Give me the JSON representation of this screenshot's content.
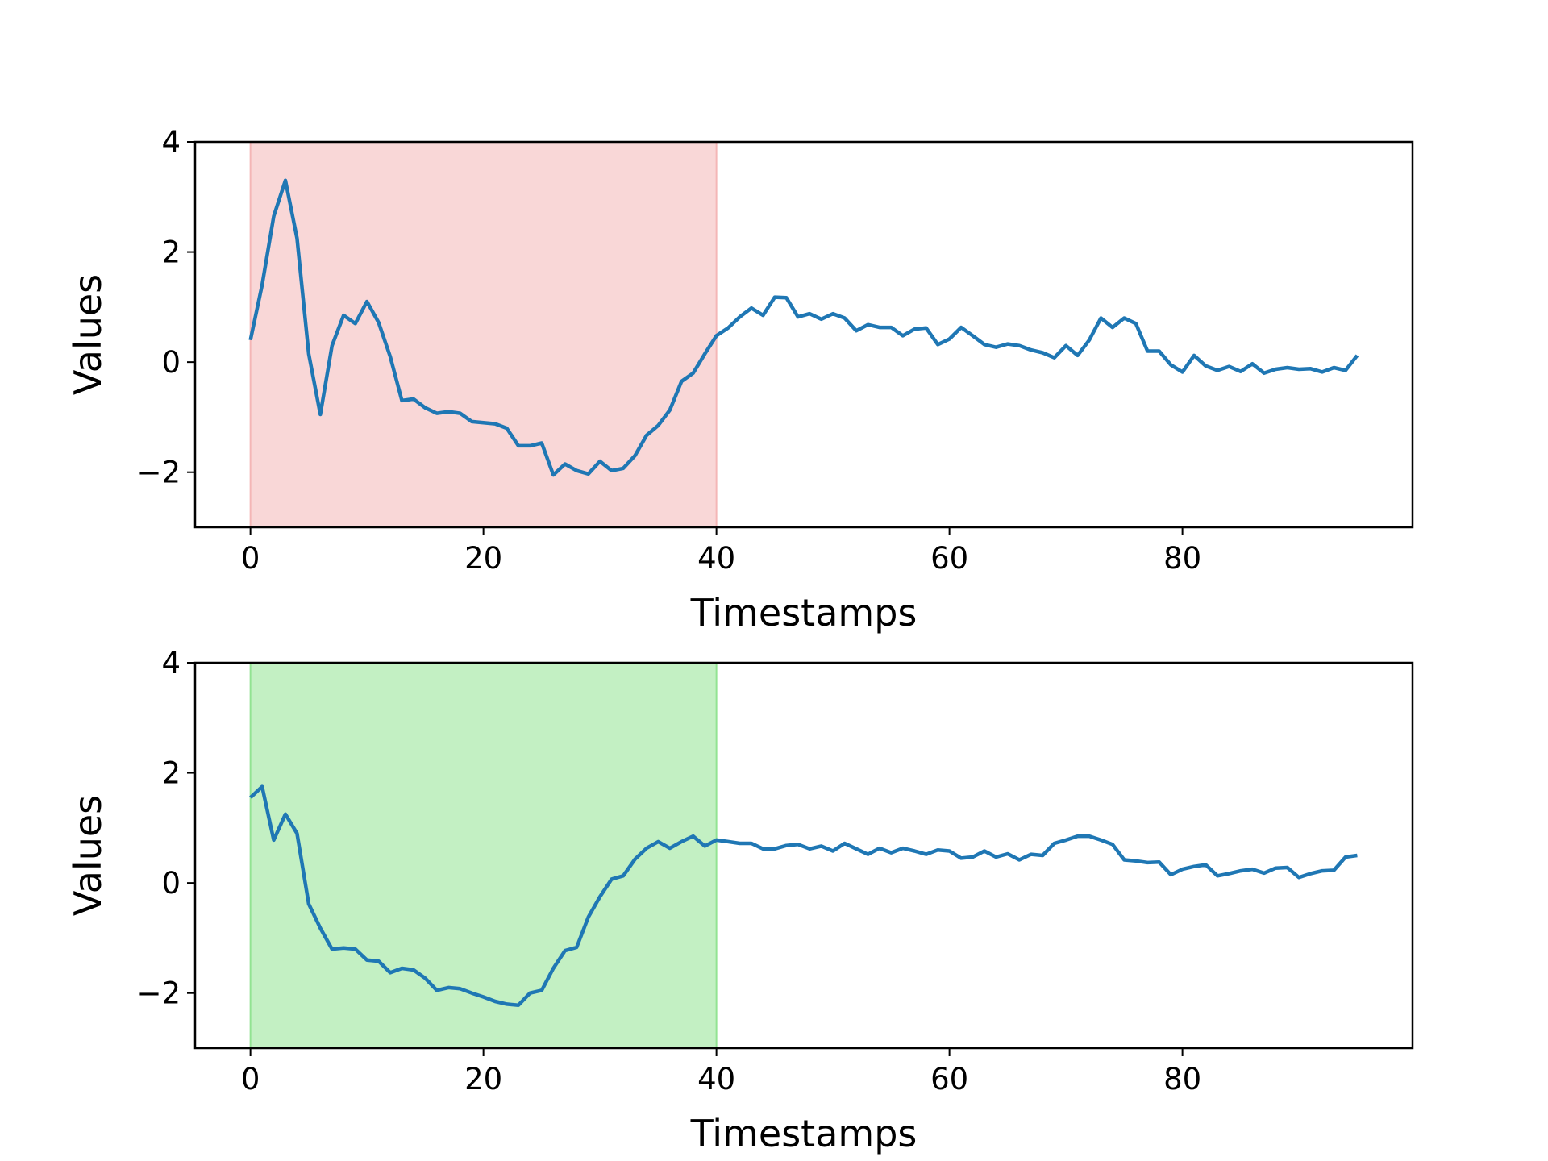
{
  "chart_data": [
    {
      "type": "line",
      "xlabel": "Timestamps",
      "ylabel": "Values",
      "xlim": [
        -4.75,
        99.75
      ],
      "ylim": [
        -3,
        4
      ],
      "xticks": [
        0,
        20,
        40,
        60,
        80
      ],
      "yticks": [
        -2,
        0,
        2,
        4
      ],
      "grid": false,
      "highlight": {
        "x_start": 0,
        "x_end": 40,
        "color": "#f4b6b6"
      },
      "line_color": "#1f77b4",
      "series": [
        {
          "x": [
            0,
            1,
            2,
            3,
            4,
            5,
            6,
            7,
            8,
            9,
            10,
            11,
            12,
            13,
            14,
            15,
            16,
            17,
            18,
            19,
            20,
            21,
            22,
            23,
            24,
            25,
            26,
            27,
            28,
            29,
            30,
            31,
            32,
            33,
            34,
            35,
            36,
            37,
            38,
            39,
            40,
            41,
            42,
            43,
            44,
            45,
            46,
            47,
            48,
            49,
            50,
            51,
            52,
            53,
            54,
            55,
            56,
            57,
            58,
            59,
            60,
            61,
            62,
            63,
            64,
            65,
            66,
            67,
            68,
            69,
            70,
            71,
            72,
            73,
            74,
            75,
            76,
            77,
            78,
            79,
            80,
            81,
            82,
            83,
            84,
            85,
            86,
            87,
            88,
            89,
            90,
            91,
            92,
            93,
            94,
            95
          ],
          "y": [
            0.4,
            1.4,
            2.65,
            3.3,
            2.25,
            0.15,
            -0.95,
            0.3,
            0.85,
            0.7,
            1.1,
            0.72,
            0.1,
            -0.7,
            -0.67,
            -0.83,
            -0.93,
            -0.9,
            -0.93,
            -1.08,
            -1.1,
            -1.12,
            -1.2,
            -1.52,
            -1.52,
            -1.47,
            -2.05,
            -1.85,
            -1.97,
            -2.03,
            -1.8,
            -1.97,
            -1.93,
            -1.7,
            -1.33,
            -1.15,
            -0.87,
            -0.35,
            -0.2,
            0.15,
            0.48,
            0.62,
            0.82,
            0.98,
            0.85,
            1.18,
            1.17,
            0.82,
            0.88,
            0.78,
            0.88,
            0.8,
            0.57,
            0.68,
            0.63,
            0.63,
            0.48,
            0.6,
            0.62,
            0.32,
            0.42,
            0.63,
            0.48,
            0.32,
            0.27,
            0.33,
            0.3,
            0.22,
            0.17,
            0.08,
            0.3,
            0.12,
            0.4,
            0.8,
            0.63,
            0.8,
            0.7,
            0.2,
            0.2,
            -0.05,
            -0.18,
            0.12,
            -0.07,
            -0.15,
            -0.08,
            -0.17,
            -0.03,
            -0.2,
            -0.13,
            -0.1,
            -0.13,
            -0.12,
            -0.18,
            -0.1,
            -0.15,
            0.12
          ]
        }
      ]
    },
    {
      "type": "line",
      "xlabel": "Timestamps",
      "ylabel": "Values",
      "xlim": [
        -4.75,
        99.75
      ],
      "ylim": [
        -3,
        4
      ],
      "xticks": [
        0,
        20,
        40,
        60,
        80
      ],
      "yticks": [
        -2,
        0,
        2,
        4
      ],
      "grid": false,
      "highlight": {
        "x_start": 0,
        "x_end": 40,
        "color": "#92e392"
      },
      "line_color": "#1f77b4",
      "series": [
        {
          "x": [
            0,
            1,
            2,
            3,
            4,
            5,
            6,
            7,
            8,
            9,
            10,
            11,
            12,
            13,
            14,
            15,
            16,
            17,
            18,
            19,
            20,
            21,
            22,
            23,
            24,
            25,
            26,
            27,
            28,
            29,
            30,
            31,
            32,
            33,
            34,
            35,
            36,
            37,
            38,
            39,
            40,
            41,
            42,
            43,
            44,
            45,
            46,
            47,
            48,
            49,
            50,
            51,
            52,
            53,
            54,
            55,
            56,
            57,
            58,
            59,
            60,
            61,
            62,
            63,
            64,
            65,
            66,
            67,
            68,
            69,
            70,
            71,
            72,
            73,
            74,
            75,
            76,
            77,
            78,
            79,
            80,
            81,
            82,
            83,
            84,
            85,
            86,
            87,
            88,
            89,
            90,
            91,
            92,
            93,
            94,
            95
          ],
          "y": [
            1.55,
            1.75,
            0.78,
            1.25,
            0.9,
            -0.38,
            -0.82,
            -1.2,
            -1.18,
            -1.2,
            -1.4,
            -1.42,
            -1.63,
            -1.55,
            -1.58,
            -1.73,
            -1.95,
            -1.9,
            -1.92,
            -2.0,
            -2.07,
            -2.15,
            -2.2,
            -2.22,
            -2.0,
            -1.95,
            -1.55,
            -1.23,
            -1.17,
            -0.62,
            -0.25,
            0.07,
            0.13,
            0.43,
            0.63,
            0.75,
            0.63,
            0.75,
            0.85,
            0.67,
            0.78,
            0.75,
            0.72,
            0.72,
            0.62,
            0.62,
            0.68,
            0.7,
            0.62,
            0.67,
            0.58,
            0.72,
            0.62,
            0.52,
            0.63,
            0.55,
            0.63,
            0.58,
            0.52,
            0.6,
            0.58,
            0.45,
            0.47,
            0.58,
            0.47,
            0.53,
            0.42,
            0.52,
            0.5,
            0.72,
            0.78,
            0.85,
            0.85,
            0.78,
            0.7,
            0.42,
            0.4,
            0.37,
            0.38,
            0.15,
            0.25,
            0.3,
            0.33,
            0.13,
            0.17,
            0.22,
            0.25,
            0.18,
            0.27,
            0.28,
            0.1,
            0.17,
            0.22,
            0.23,
            0.47,
            0.5
          ]
        }
      ]
    }
  ]
}
